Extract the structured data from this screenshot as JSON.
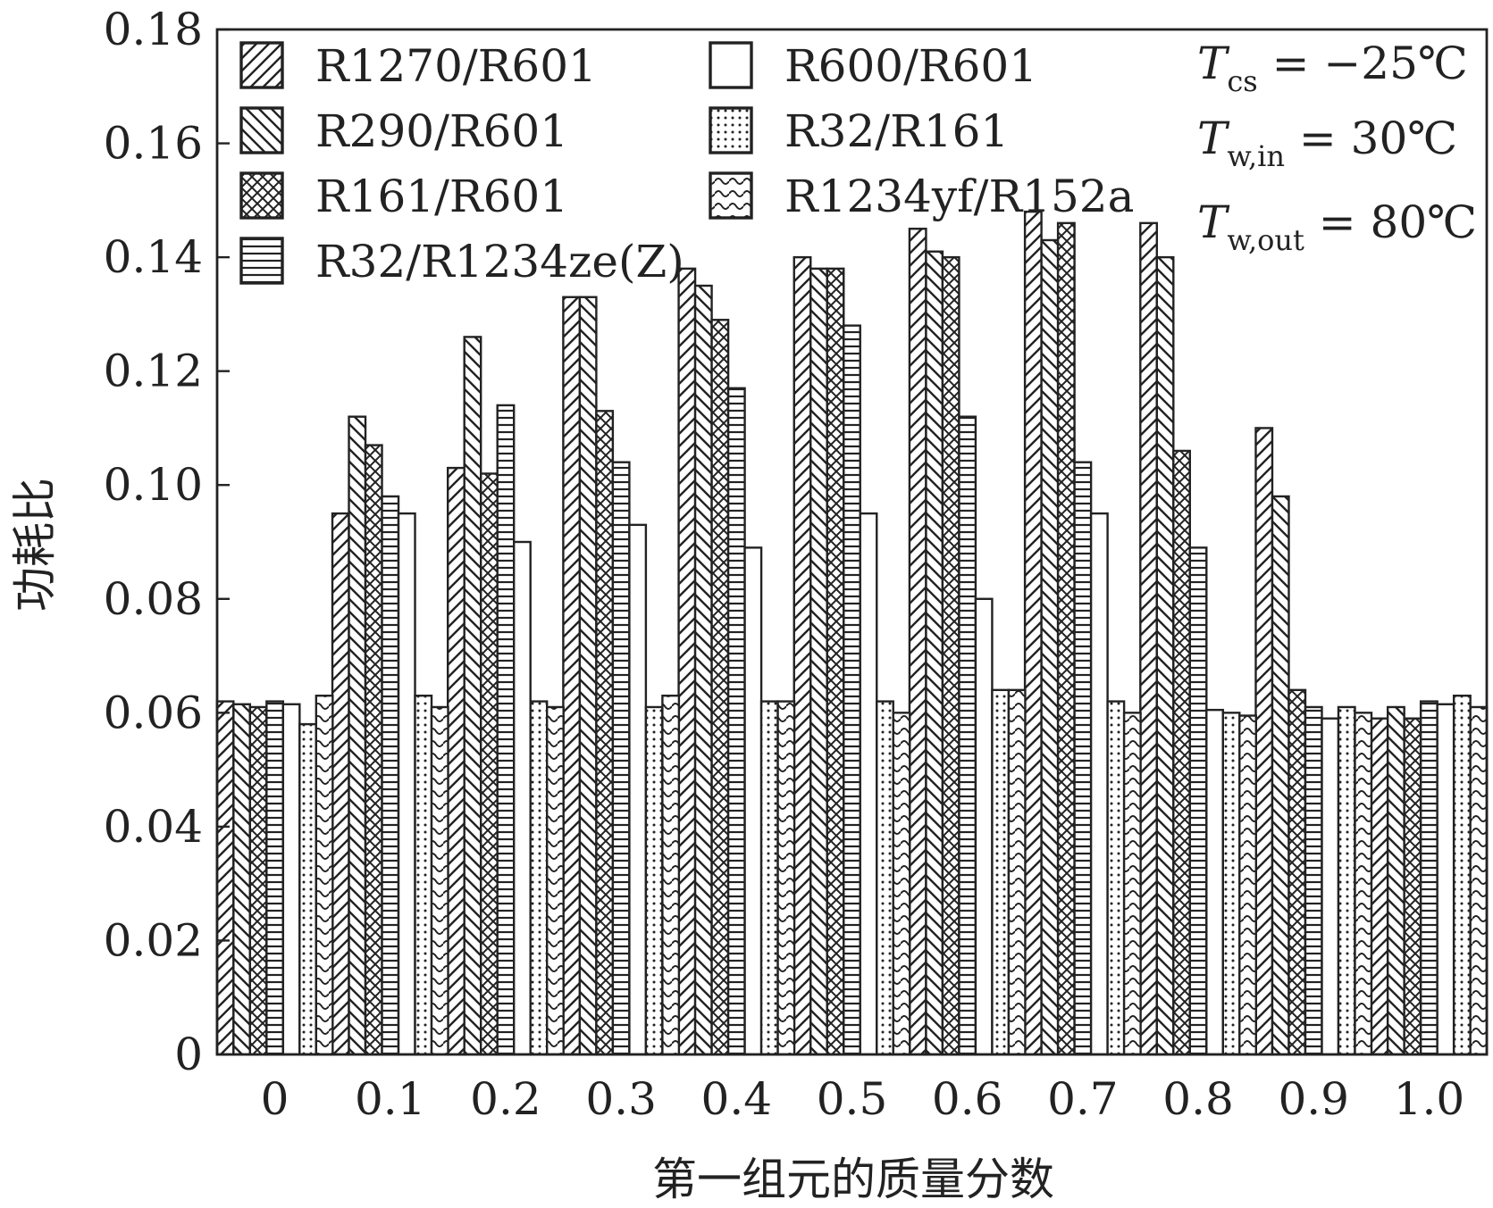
{
  "chart_data": {
    "type": "bar",
    "title": "",
    "xlabel": "第一组元的质量分数",
    "ylabel": "功耗比",
    "ylim": [
      0,
      0.18
    ],
    "yticks": [
      "0",
      "0.02",
      "0.04",
      "0.06",
      "0.08",
      "0.10",
      "0.12",
      "0.14",
      "0.16",
      "0.18"
    ],
    "categories": [
      "0",
      "0.1",
      "0.2",
      "0.3",
      "0.4",
      "0.5",
      "0.6",
      "0.7",
      "0.8",
      "0.9",
      "1.0"
    ],
    "legend_position": "top-left",
    "series": [
      {
        "name": "R1270/R601",
        "pattern": "diag-fwd",
        "values": [
          0.062,
          0.095,
          0.103,
          0.133,
          0.138,
          0.14,
          0.145,
          0.148,
          0.146,
          0.11,
          0.059
        ]
      },
      {
        "name": "R290/R601",
        "pattern": "diag-back",
        "values": [
          0.0615,
          0.112,
          0.126,
          0.133,
          0.135,
          0.138,
          0.141,
          0.143,
          0.14,
          0.098,
          0.061
        ]
      },
      {
        "name": "R161/R601",
        "pattern": "cross",
        "values": [
          0.061,
          0.107,
          0.102,
          0.113,
          0.129,
          0.138,
          0.14,
          0.146,
          0.106,
          0.064,
          0.059
        ]
      },
      {
        "name": "R32/R1234ze(Z)",
        "pattern": "horizontal",
        "values": [
          0.062,
          0.098,
          0.114,
          0.104,
          0.117,
          0.128,
          0.112,
          0.104,
          0.089,
          0.061,
          0.062
        ]
      },
      {
        "name": "R600/R601",
        "pattern": "none",
        "values": [
          0.0615,
          0.095,
          0.09,
          0.093,
          0.089,
          0.095,
          0.08,
          0.095,
          0.0605,
          0.059,
          0.0615
        ]
      },
      {
        "name": "R32/R161",
        "pattern": "dots",
        "values": [
          0.058,
          0.063,
          0.062,
          0.061,
          0.062,
          0.062,
          0.064,
          0.062,
          0.06,
          0.061,
          0.063
        ]
      },
      {
        "name": "R1234yf/R152a",
        "pattern": "wave",
        "values": [
          0.063,
          0.061,
          0.061,
          0.063,
          0.062,
          0.06,
          0.064,
          0.06,
          0.0595,
          0.06,
          0.061
        ]
      }
    ]
  },
  "conditions": [
    {
      "symbol": "T",
      "sub": "cs",
      "rest": " = −25℃"
    },
    {
      "symbol": "T",
      "sub": "w,in",
      "rest": " = 30℃"
    },
    {
      "symbol": "T",
      "sub": "w,out",
      "rest": " = 80℃"
    }
  ]
}
